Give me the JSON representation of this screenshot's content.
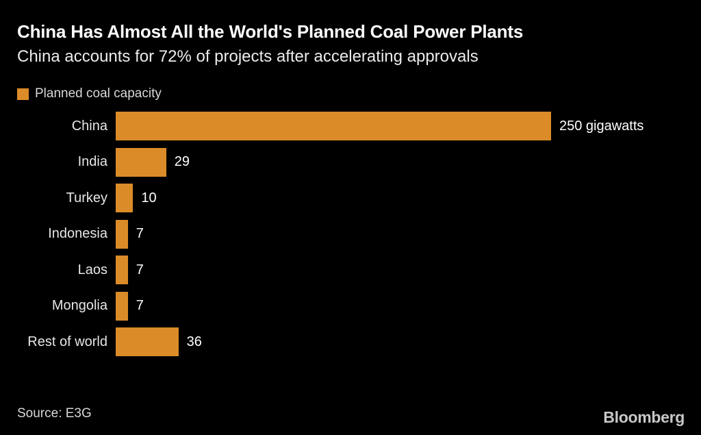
{
  "header": {
    "title": "China Has Almost All the World's Planned Coal Power Plants",
    "subtitle": "China accounts for 72% of projects after accelerating approvals"
  },
  "legend": {
    "label": "Planned coal capacity",
    "swatch_color": "#DB8B28"
  },
  "chart_data": {
    "type": "bar",
    "orientation": "horizontal",
    "series_name": "Planned coal capacity",
    "categories": [
      "China",
      "India",
      "Turkey",
      "Indonesia",
      "Laos",
      "Mongolia",
      "Rest of world"
    ],
    "values": [
      250,
      29,
      10,
      7,
      7,
      7,
      36
    ],
    "value_labels": [
      "250 gigawatts",
      "29",
      "10",
      "7",
      "7",
      "7",
      "36"
    ],
    "unit": "gigawatts",
    "xlim": [
      0,
      250
    ],
    "bar_color": "#DB8B28",
    "background_color": "#000000",
    "grid": false,
    "legend_position": "top-left"
  },
  "footer": {
    "source": "Source: E3G",
    "brand": "Bloomberg"
  }
}
